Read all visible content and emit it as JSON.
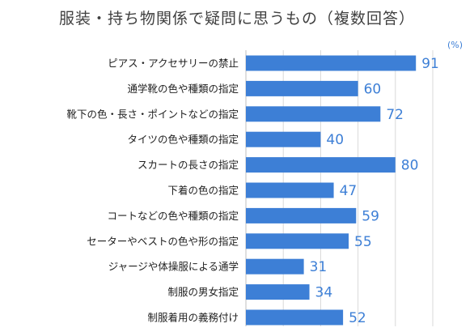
{
  "chart_data": {
    "type": "bar",
    "orientation": "horizontal",
    "title": "服装・持ち物関係で疑問に思うもの（複数回答）",
    "unit": "(%)",
    "categories": [
      "ピアス・アクセサリーの禁止",
      "通学靴の色や種類の指定",
      "靴下の色・長さ・ポイントなどの指定",
      "タイツの色や種類の指定",
      "スカートの長さの指定",
      "下着の色の指定",
      "コートなどの色や種類の指定",
      "セーターやベストの色や形の指定",
      "ジャージや体操服による通学",
      "制服の男女指定",
      "制服着用の義務付け"
    ],
    "values": [
      91,
      60,
      72,
      40,
      80,
      47,
      59,
      55,
      31,
      34,
      52
    ],
    "xlim": [
      0,
      100
    ],
    "grid": true,
    "bar_color": "#3d7fd6"
  }
}
